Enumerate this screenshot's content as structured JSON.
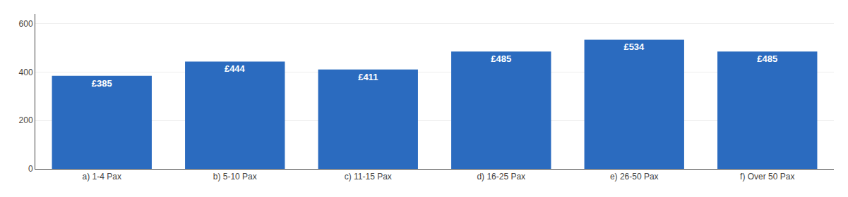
{
  "chart_data": {
    "type": "bar",
    "categories": [
      "a) 1-4 Pax",
      "b) 5-10 Pax",
      "c) 11-15 Pax",
      "d) 16-25 Pax",
      "e) 26-50 Pax",
      "f) Over 50 Pax"
    ],
    "values": [
      385,
      444,
      411,
      485,
      534,
      485
    ],
    "value_labels": [
      "£385",
      "£444",
      "£411",
      "£485",
      "£534",
      "£485"
    ],
    "color": "#2b6bbf",
    "ylim": [
      0,
      640
    ],
    "yticks": [
      0,
      200,
      400,
      600
    ],
    "grid": true,
    "data_labels": true
  }
}
